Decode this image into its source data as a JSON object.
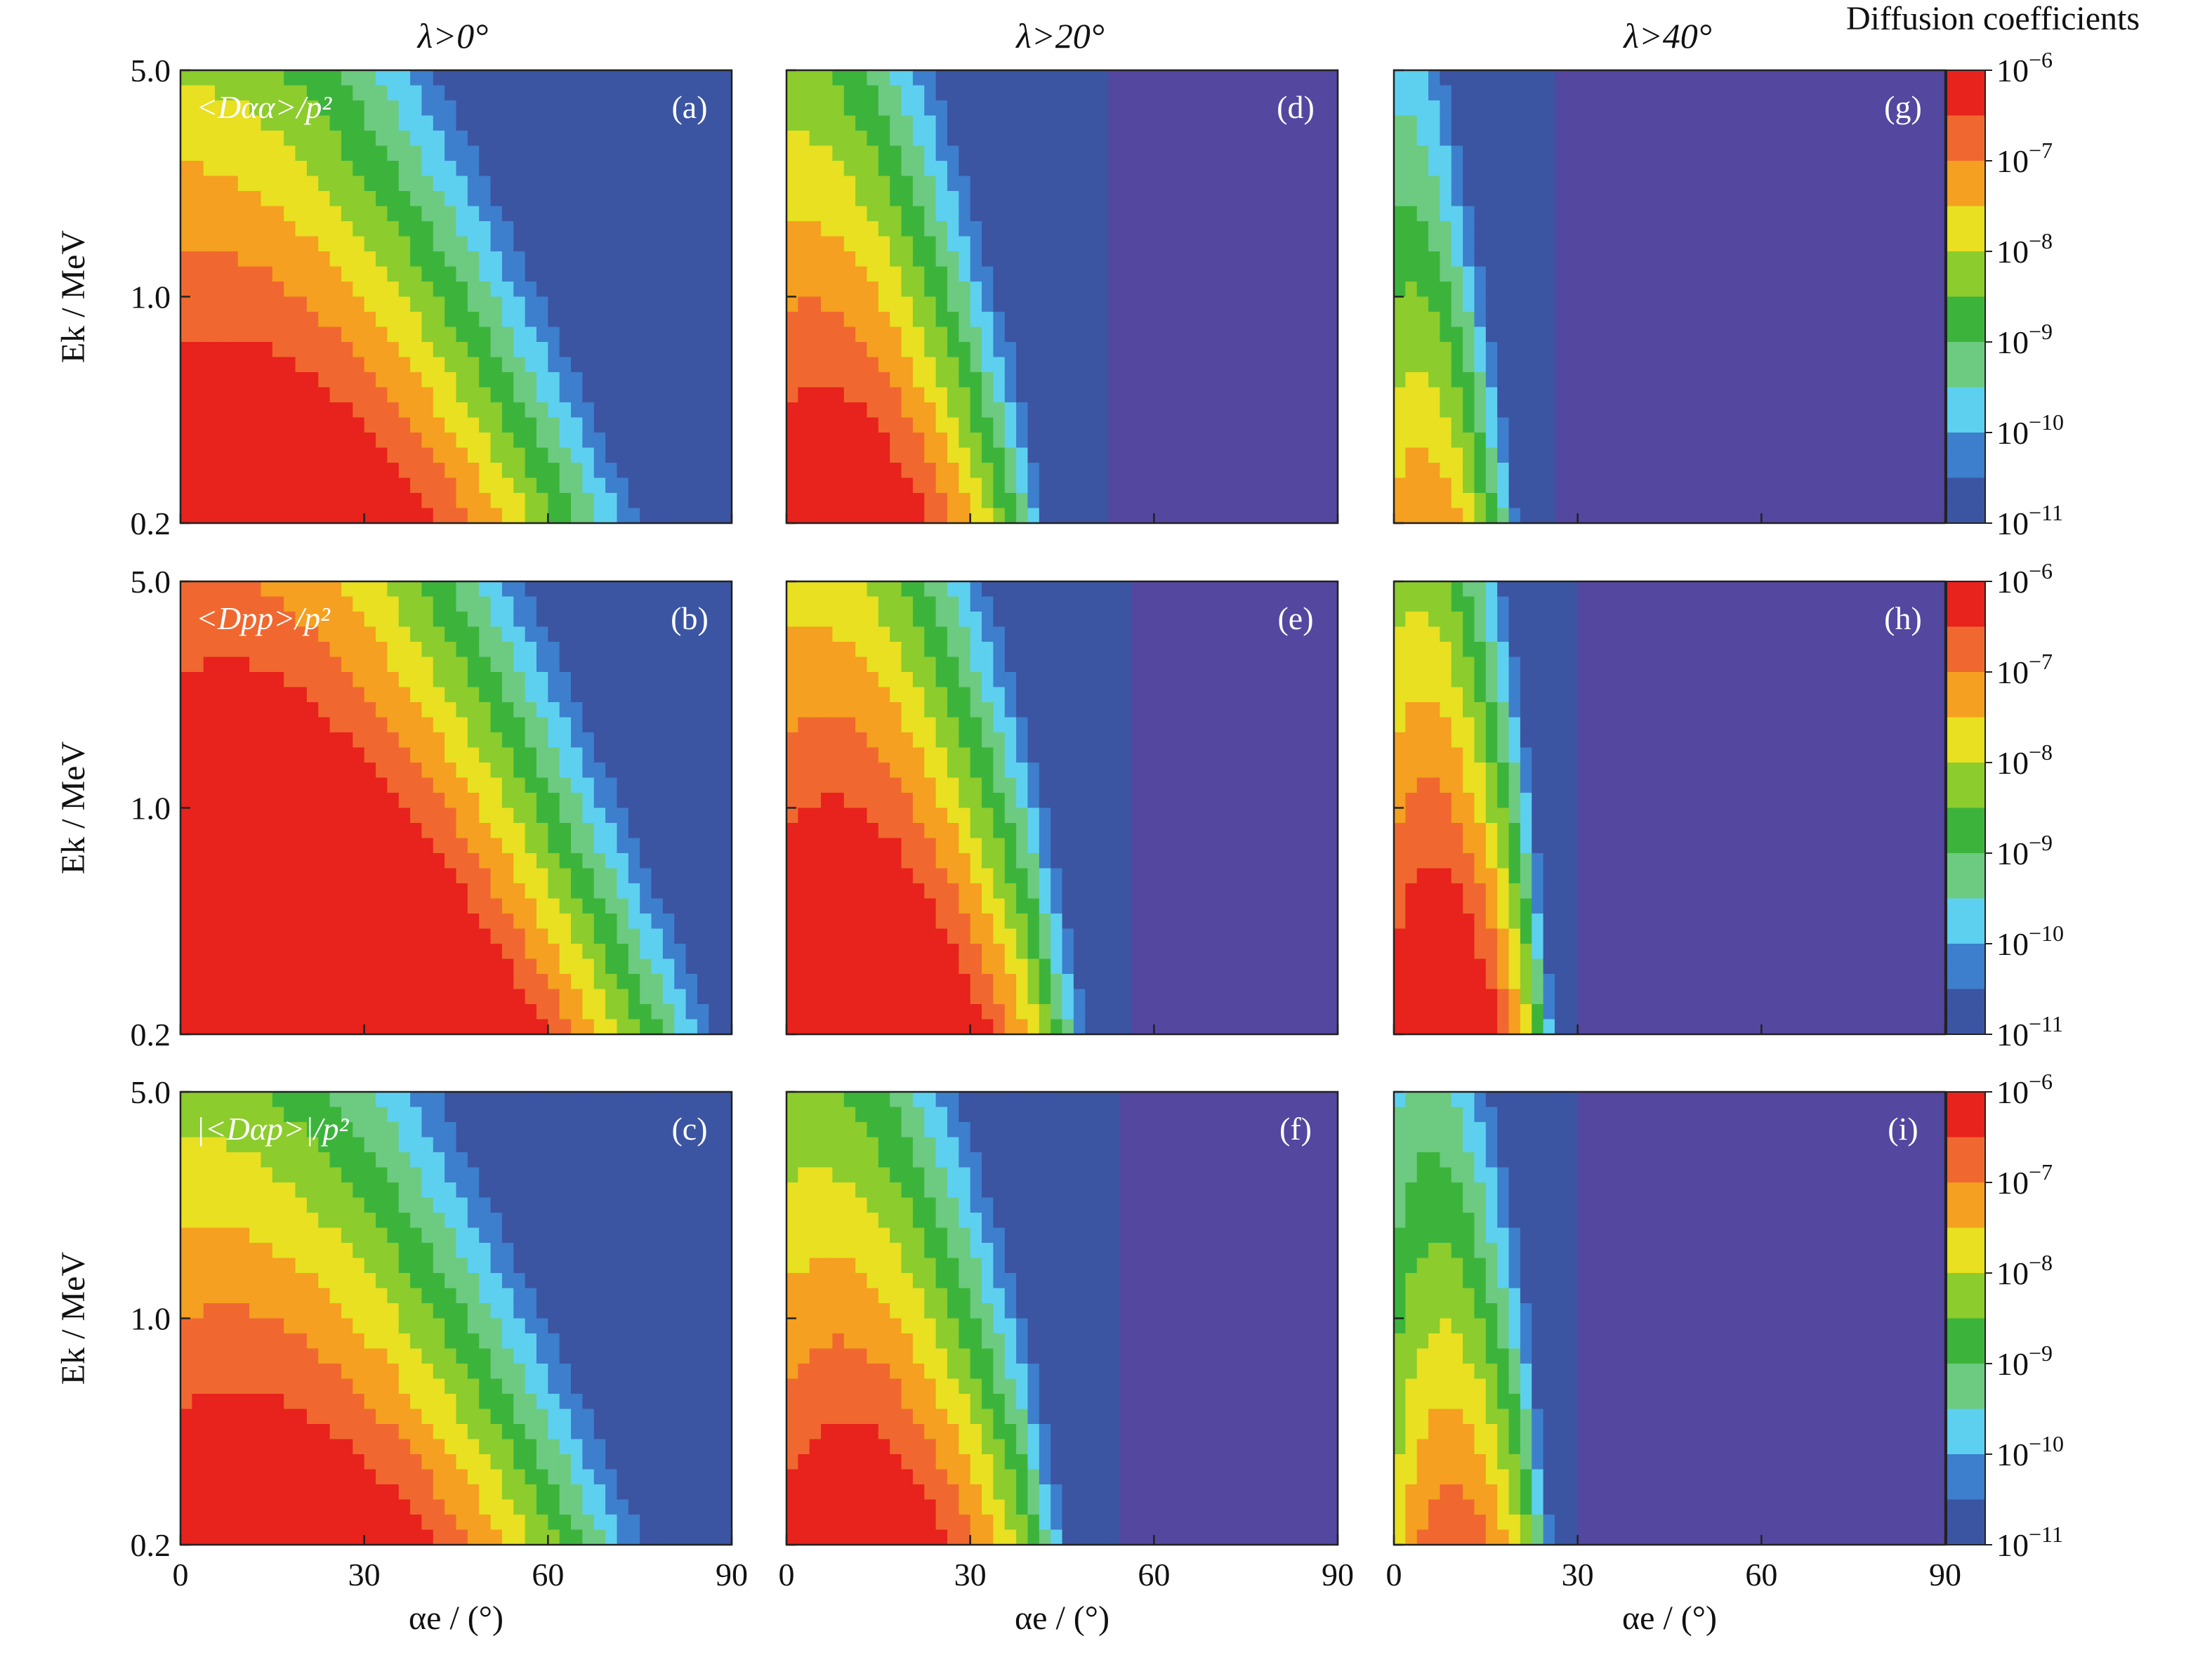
{
  "chart_data": {
    "type": "heatmap",
    "figure_title": "Diffusion coefficients",
    "column_titles": [
      "λ>0°",
      "λ>20°",
      "λ>40°"
    ],
    "row_quantities": [
      "<Dαα>/p²",
      "<Dpp>/p²",
      "|<Dαp>|/p²"
    ],
    "xlabel": "αe / (°)",
    "ylabel": "Ek / MeV",
    "xlim": [
      0,
      90
    ],
    "xticks": [
      "0",
      "30",
      "60",
      "90"
    ],
    "ylim": [
      0.2,
      5.0
    ],
    "yscale": "log",
    "yticks": [
      "0.2",
      "1.0",
      "5.0"
    ],
    "colorbar": {
      "scale": "log",
      "range": [
        1e-11,
        1e-06
      ],
      "tick_labels": [
        {
          "base": "10",
          "exp": "−6"
        },
        {
          "base": "10",
          "exp": "−7"
        },
        {
          "base": "10",
          "exp": "−8"
        },
        {
          "base": "10",
          "exp": "−9"
        },
        {
          "base": "10",
          "exp": "−10"
        },
        {
          "base": "10",
          "exp": "−11"
        }
      ],
      "colors": [
        "#3b55a3",
        "#3d7fcc",
        "#5dd0f0",
        "#6ccb80",
        "#3cb43c",
        "#8ccc2c",
        "#e8e020",
        "#f5a020",
        "#f06830",
        "#e8221c"
      ]
    },
    "background_color": "#5347a0",
    "panels": [
      {
        "label": "(a)",
        "row": 0,
        "col": 0,
        "quantity_label": "<Dαα>/p²",
        "alpha_cutoff_deg": 90,
        "peak_log10": -5.3,
        "peak_alpha_deg": 12,
        "peak_energy_MeV": 0.2
      },
      {
        "label": "(b)",
        "row": 1,
        "col": 0,
        "quantity_label": "<Dpp>/p²",
        "alpha_cutoff_deg": 90,
        "peak_log10": -4.2,
        "peak_alpha_deg": 18,
        "peak_energy_MeV": 0.2
      },
      {
        "label": "(c)",
        "row": 2,
        "col": 0,
        "quantity_label": "|<Dαp>|/p²",
        "alpha_cutoff_deg": 90,
        "peak_log10": -5.5,
        "peak_alpha_deg": 14,
        "peak_energy_MeV": 0.2
      },
      {
        "label": "(d)",
        "row": 0,
        "col": 1,
        "quantity_label": "",
        "alpha_cutoff_deg": 53,
        "peak_log10": -5.6,
        "peak_alpha_deg": 8,
        "peak_energy_MeV": 0.2
      },
      {
        "label": "(e)",
        "row": 1,
        "col": 1,
        "quantity_label": "",
        "alpha_cutoff_deg": 57,
        "peak_log10": -5.0,
        "peak_alpha_deg": 12,
        "peak_energy_MeV": 0.2
      },
      {
        "label": "(f)",
        "row": 2,
        "col": 1,
        "quantity_label": "",
        "alpha_cutoff_deg": 55,
        "peak_log10": -5.7,
        "peak_alpha_deg": 12,
        "peak_energy_MeV": 0.2
      },
      {
        "label": "(g)",
        "row": 0,
        "col": 2,
        "quantity_label": "",
        "alpha_cutoff_deg": 27,
        "peak_log10": -7.0,
        "peak_alpha_deg": 5,
        "peak_energy_MeV": 0.2
      },
      {
        "label": "(h)",
        "row": 1,
        "col": 2,
        "quantity_label": "",
        "alpha_cutoff_deg": 30,
        "peak_log10": -5.4,
        "peak_alpha_deg": 8,
        "peak_energy_MeV": 0.2
      },
      {
        "label": "(i)",
        "row": 2,
        "col": 2,
        "quantity_label": "",
        "alpha_cutoff_deg": 30,
        "peak_log10": -6.6,
        "peak_alpha_deg": 10,
        "peak_energy_MeV": 0.2
      }
    ]
  }
}
